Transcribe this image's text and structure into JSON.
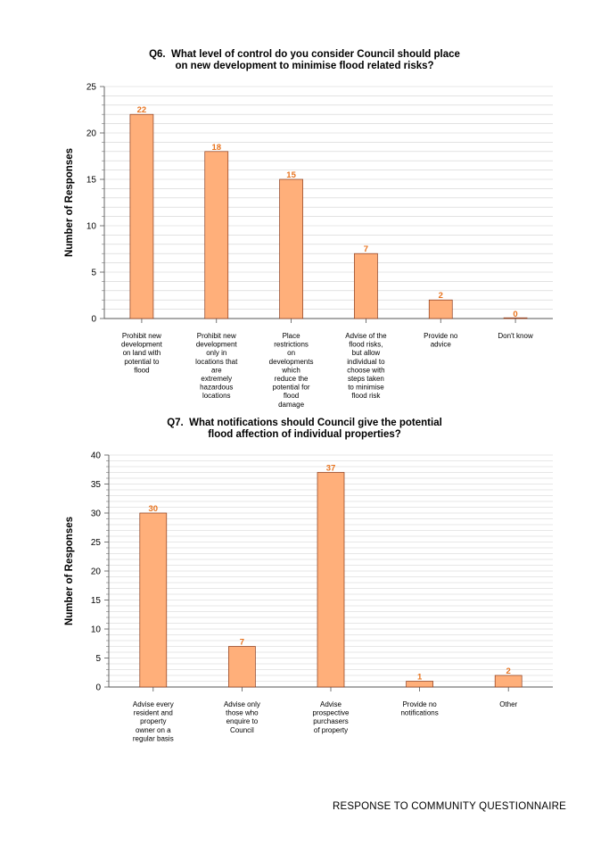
{
  "chart_data": [
    {
      "type": "bar",
      "title_lines": [
        "Q6.  What level of control do you consider Council should place",
        "on new development to minimise flood related risks?"
      ],
      "ylabel": "Number of Responses",
      "xlabel": "",
      "ylim": [
        0,
        25
      ],
      "yticks": [
        0,
        5,
        10,
        15,
        20,
        25
      ],
      "grid": true,
      "categories": [
        [
          "Prohibit new",
          "development",
          "on land with",
          "potential to",
          "flood"
        ],
        [
          "Prohibit new",
          "development",
          "only in",
          "locations that",
          "are",
          "extremely",
          "hazardous",
          "locations"
        ],
        [
          "Place",
          "restrictions",
          "on",
          "developments",
          "which",
          "reduce the",
          "potential for",
          "flood",
          "damage"
        ],
        [
          "Advise of the",
          "flood risks,",
          "but allow",
          "individual to",
          "choose with",
          "steps taken",
          "to minimise",
          "flood risk"
        ],
        [
          "Provide no",
          "advice"
        ],
        [
          "Don't know"
        ]
      ],
      "values": [
        22,
        18,
        15,
        7,
        2,
        0
      ],
      "bar_color": "#FFAF7A",
      "bar_edge": "#8B3A1A",
      "label_color": "#E8731E"
    },
    {
      "type": "bar",
      "title_lines": [
        "Q7.  What notifications should Council give the potential",
        "flood affection of individual properties?"
      ],
      "ylabel": "Number of Responses",
      "xlabel": "",
      "ylim": [
        0,
        40
      ],
      "yticks": [
        0,
        5,
        10,
        15,
        20,
        25,
        30,
        35,
        40
      ],
      "grid": true,
      "categories": [
        [
          "Advise every",
          "resident and",
          "property",
          "owner on a",
          "regular basis"
        ],
        [
          "Advise only",
          "those who",
          "enquire to",
          "Council"
        ],
        [
          "Advise",
          "prospective",
          "purchasers",
          "of property"
        ],
        [
          "Provide no",
          "notifications"
        ],
        [
          "Other"
        ]
      ],
      "values": [
        30,
        7,
        37,
        1,
        2
      ],
      "bar_color": "#FFAF7A",
      "bar_edge": "#8B3A1A",
      "label_color": "#E8731E"
    }
  ],
  "footer": "RESPONSE TO COMMUNITY QUESTIONNAIRE"
}
